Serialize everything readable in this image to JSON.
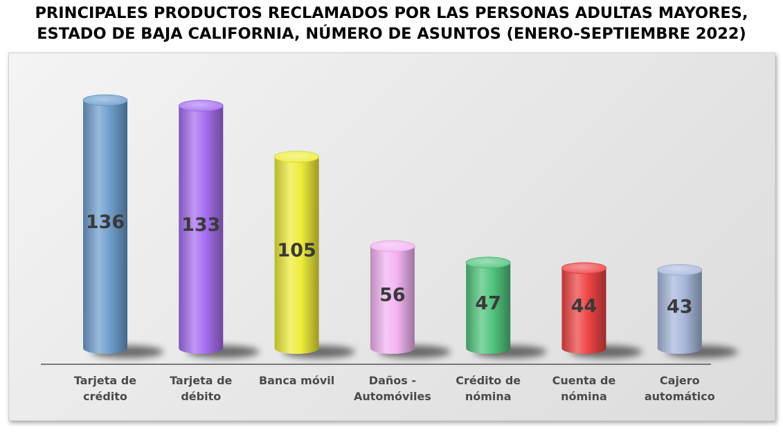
{
  "title": {
    "line1": "PRINCIPALES PRODUCTOS RECLAMADOS POR LAS PERSONAS ADULTAS MAYORES,",
    "line2": "ESTADO DE BAJA CALIFORNIA, NÚMERO DE ASUNTOS (ENERO-SEPTIEMBRE 2022)"
  },
  "chart_data": {
    "type": "bar",
    "style": "3d-cylinder",
    "title": "PRINCIPALES PRODUCTOS RECLAMADOS POR LAS PERSONAS ADULTAS MAYORES, ESTADO DE BAJA CALIFORNIA, NÚMERO DE ASUNTOS (ENERO-SEPTIEMBRE 2022)",
    "xlabel": "",
    "ylabel": "",
    "ylim": [
      0,
      136
    ],
    "grid": false,
    "legend": "none",
    "categories": [
      [
        "Tarjeta de",
        "crédito"
      ],
      [
        "Tarjeta de",
        "débito"
      ],
      [
        "Banca móvil"
      ],
      [
        "Daños -",
        "Automóviles"
      ],
      [
        "Crédito de",
        "nómina"
      ],
      [
        "Cuenta de",
        "nómina"
      ],
      [
        "Cajero",
        "automático"
      ]
    ],
    "values": [
      136,
      133,
      105,
      56,
      47,
      44,
      43
    ],
    "colors": [
      "#6f9fce",
      "#a66ef0",
      "#eeec3a",
      "#f2b4f2",
      "#52c47e",
      "#ee4444",
      "#a8b8dc"
    ]
  }
}
